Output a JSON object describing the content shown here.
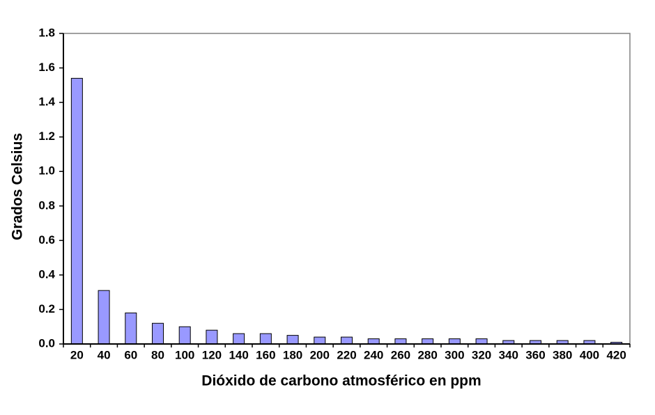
{
  "chart_data": {
    "type": "bar",
    "x_label": "Dióxido de carbono atmosférico en ppm",
    "y_label": "Grados Celsius",
    "categories": [
      "20",
      "40",
      "60",
      "80",
      "100",
      "120",
      "140",
      "160",
      "180",
      "200",
      "220",
      "240",
      "260",
      "280",
      "300",
      "320",
      "340",
      "360",
      "380",
      "400",
      "420"
    ],
    "values": [
      1.54,
      0.31,
      0.18,
      0.12,
      0.1,
      0.08,
      0.06,
      0.06,
      0.05,
      0.04,
      0.04,
      0.03,
      0.03,
      0.03,
      0.03,
      0.03,
      0.02,
      0.02,
      0.02,
      0.02,
      0.01
    ],
    "color": "#9999ff",
    "ylim": [
      0,
      1.8
    ],
    "yticks": [
      {
        "value": 0,
        "label": "0.0"
      },
      0.2,
      0.4,
      0.6,
      0.8,
      {
        "value": 1,
        "label": "1.0"
      },
      1.2,
      1.4,
      1.6,
      1.8
    ],
    "grid": false
  }
}
